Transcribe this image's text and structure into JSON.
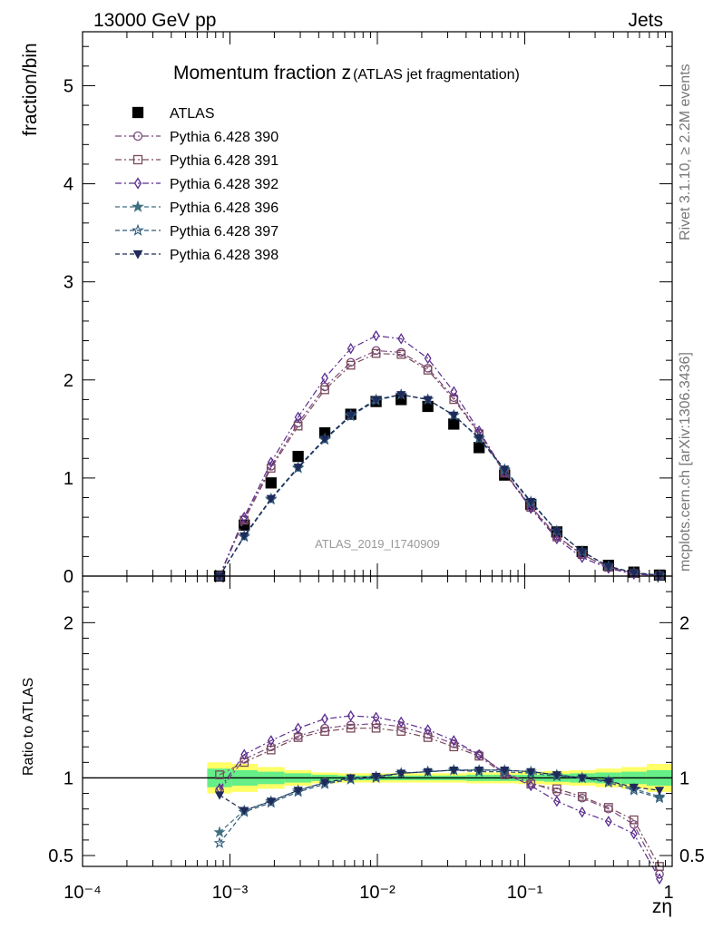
{
  "header": {
    "left": "13000 GeV pp",
    "right": "Jets"
  },
  "side_text": {
    "top": "Rivet 3.1.10, ≥ 2.2M events",
    "bottom": "mcplots.cern.ch [arXiv:1306.3436]"
  },
  "watermark": "ATLAS_2019_I1740909",
  "chart_data": [
    {
      "type": "scatter",
      "title_main": "Momentum fraction z",
      "title_sub": "(ATLAS jet fragmentation)",
      "xlabel": "zη",
      "ylabel": "fraction/bin",
      "xscale": "log",
      "xlim": [
        0.0001,
        1
      ],
      "ylim": [
        0,
        5.55
      ],
      "x_ticks": [
        "10⁻⁴",
        "10⁻³",
        "10⁻²",
        "10⁻¹",
        "1"
      ],
      "y_ticks": [
        "0",
        "1",
        "2",
        "3",
        "4",
        "5"
      ],
      "x": [
        0.00085,
        0.00125,
        0.0019,
        0.0029,
        0.0044,
        0.0066,
        0.0098,
        0.0145,
        0.022,
        0.033,
        0.049,
        0.073,
        0.11,
        0.165,
        0.245,
        0.37,
        0.55,
        0.82
      ],
      "series": [
        {
          "name": "ATLAS",
          "marker": "square-filled",
          "color": "#000000",
          "line": "none",
          "values": [
            0.0,
            0.52,
            0.95,
            1.22,
            1.46,
            1.65,
            1.78,
            1.8,
            1.73,
            1.55,
            1.31,
            1.03,
            0.73,
            0.45,
            0.25,
            0.11,
            0.04,
            0.01
          ]
        },
        {
          "name": "Pythia 6.428 390",
          "marker": "circle-open",
          "color": "#7a4a7e",
          "line": "dashdot",
          "values": [
            0.0,
            0.58,
            1.12,
            1.56,
            1.93,
            2.18,
            2.3,
            2.28,
            2.12,
            1.82,
            1.46,
            1.06,
            0.71,
            0.41,
            0.22,
            0.09,
            0.03,
            0.005
          ]
        },
        {
          "name": "Pythia 6.428 391",
          "marker": "square-open",
          "color": "#7a4a5a",
          "line": "dashdot",
          "values": [
            0.0,
            0.57,
            1.1,
            1.53,
            1.9,
            2.15,
            2.27,
            2.26,
            2.1,
            1.8,
            1.45,
            1.05,
            0.7,
            0.4,
            0.22,
            0.09,
            0.03,
            0.005
          ]
        },
        {
          "name": "Pythia 6.428 392",
          "marker": "diamond-open",
          "color": "#5b2d8e",
          "line": "dashdot",
          "values": [
            0.0,
            0.6,
            1.16,
            1.62,
            2.02,
            2.32,
            2.45,
            2.42,
            2.22,
            1.88,
            1.48,
            1.06,
            0.69,
            0.38,
            0.19,
            0.08,
            0.02,
            0.004
          ]
        },
        {
          "name": "Pythia 6.428 396",
          "marker": "star-filled",
          "color": "#3f6f7f",
          "line": "dashed",
          "values": [
            0.0,
            0.41,
            0.79,
            1.11,
            1.4,
            1.64,
            1.8,
            1.85,
            1.8,
            1.64,
            1.41,
            1.09,
            0.76,
            0.46,
            0.25,
            0.1,
            0.035,
            0.008
          ]
        },
        {
          "name": "Pythia 6.428 397",
          "marker": "star-open",
          "color": "#2d5a7a",
          "line": "dashed",
          "values": [
            0.0,
            0.4,
            0.78,
            1.1,
            1.39,
            1.63,
            1.79,
            1.85,
            1.8,
            1.64,
            1.4,
            1.08,
            0.75,
            0.46,
            0.25,
            0.1,
            0.035,
            0.008
          ]
        },
        {
          "name": "Pythia 6.428 398",
          "marker": "triangle-down-filled",
          "color": "#1f2a5a",
          "line": "dashed",
          "values": [
            0.0,
            0.41,
            0.79,
            1.11,
            1.4,
            1.64,
            1.8,
            1.85,
            1.8,
            1.64,
            1.41,
            1.09,
            0.76,
            0.46,
            0.25,
            0.1,
            0.035,
            0.008
          ]
        }
      ]
    },
    {
      "type": "scatter",
      "ylabel": "Ratio to ATLAS",
      "xscale": "log",
      "xlim": [
        0.0001,
        1
      ],
      "ylim": [
        0.43,
        2.3
      ],
      "y_ticks": [
        "0.5",
        "1",
        "2"
      ],
      "reference_line": 1,
      "band_colors": {
        "outer": "#ffff66",
        "inner": "#66ee88"
      },
      "x": [
        0.00085,
        0.00125,
        0.0019,
        0.0029,
        0.0044,
        0.0066,
        0.0098,
        0.0145,
        0.022,
        0.033,
        0.049,
        0.073,
        0.11,
        0.165,
        0.245,
        0.37,
        0.55,
        0.82
      ],
      "band_inner": [
        0.06,
        0.05,
        0.04,
        0.03,
        0.02,
        0.015,
        0.015,
        0.015,
        0.015,
        0.015,
        0.02,
        0.02,
        0.02,
        0.025,
        0.03,
        0.035,
        0.04,
        0.05
      ],
      "band_outer": [
        0.1,
        0.09,
        0.07,
        0.05,
        0.035,
        0.03,
        0.03,
        0.03,
        0.03,
        0.03,
        0.035,
        0.035,
        0.04,
        0.045,
        0.05,
        0.06,
        0.07,
        0.09
      ],
      "series": [
        {
          "name": "Pythia 6.428 390",
          "values": [
            0.92,
            1.12,
            1.2,
            1.27,
            1.32,
            1.34,
            1.35,
            1.33,
            1.28,
            1.22,
            1.15,
            1.03,
            0.97,
            0.91,
            0.87,
            0.8,
            0.7,
            0.38
          ]
        },
        {
          "name": "Pythia 6.428 391",
          "values": [
            1.02,
            1.1,
            1.18,
            1.26,
            1.3,
            1.32,
            1.32,
            1.3,
            1.26,
            1.2,
            1.14,
            1.02,
            0.96,
            0.93,
            0.88,
            0.81,
            0.73,
            0.43
          ]
        },
        {
          "name": "Pythia 6.428 392",
          "values": [
            0.93,
            1.15,
            1.24,
            1.32,
            1.38,
            1.4,
            1.39,
            1.36,
            1.31,
            1.24,
            1.15,
            1.03,
            0.95,
            0.85,
            0.78,
            0.72,
            0.64,
            0.35
          ]
        },
        {
          "name": "Pythia 6.428 396",
          "values": [
            0.65,
            0.79,
            0.85,
            0.92,
            0.97,
            0.99,
            1.01,
            1.03,
            1.04,
            1.05,
            1.05,
            1.05,
            1.04,
            1.02,
            1.0,
            0.98,
            0.93,
            0.88
          ]
        },
        {
          "name": "Pythia 6.428 397",
          "values": [
            0.58,
            0.78,
            0.84,
            0.91,
            0.96,
            0.99,
            1.0,
            1.03,
            1.04,
            1.05,
            1.04,
            1.04,
            1.03,
            1.01,
            1.0,
            0.97,
            0.92,
            0.87
          ]
        },
        {
          "name": "Pythia 6.428 398",
          "values": [
            0.89,
            0.79,
            0.85,
            0.92,
            0.97,
            1.0,
            1.01,
            1.03,
            1.04,
            1.05,
            1.05,
            1.05,
            1.04,
            1.02,
            1.0,
            0.98,
            0.94,
            0.92
          ]
        }
      ]
    }
  ]
}
